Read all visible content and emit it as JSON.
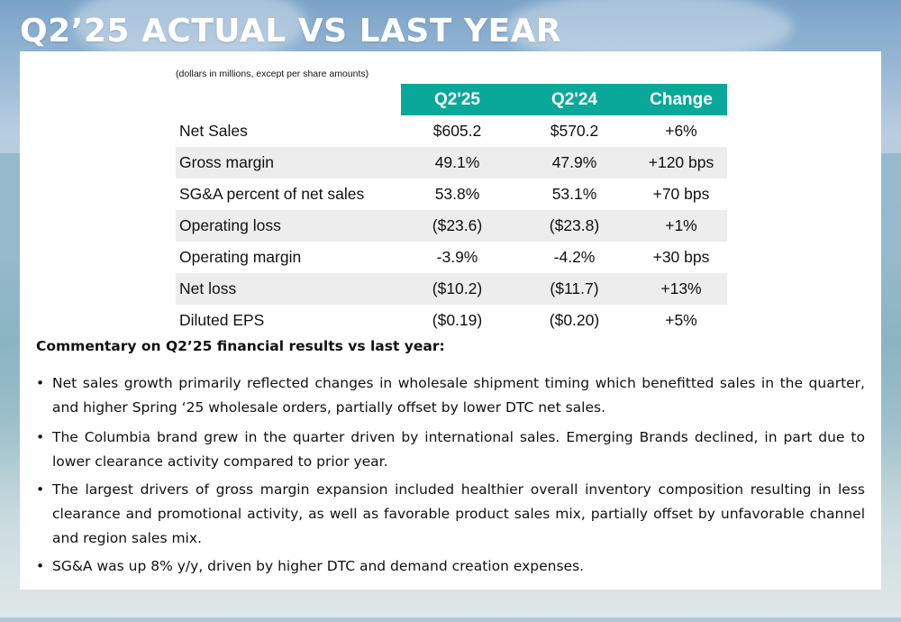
{
  "title": "Q2’25 ACTUAL VS LAST YEAR",
  "table": {
    "note": "(dollars in millions, except per share amounts)",
    "headers": [
      "",
      "Q2'25",
      "Q2'24",
      "Change"
    ],
    "rows": [
      {
        "label": "Net Sales",
        "q225": "$605.2",
        "q224": "$570.2",
        "change": "+6%"
      },
      {
        "label": "Gross margin",
        "q225": "49.1%",
        "q224": "47.9%",
        "change": "+120 bps"
      },
      {
        "label": "SG&A percent of net sales",
        "q225": "53.8%",
        "q224": "53.1%",
        "change": "+70 bps"
      },
      {
        "label": "Operating loss",
        "q225": "($23.6)",
        "q224": "($23.8)",
        "change": "+1%"
      },
      {
        "label": "Operating margin",
        "q225": "-3.9%",
        "q224": "-4.2%",
        "change": "+30 bps"
      },
      {
        "label": "Net loss",
        "q225": "($10.2)",
        "q224": "($11.7)",
        "change": "+13%"
      },
      {
        "label": "Diluted EPS",
        "q225": "($0.19)",
        "q224": "($0.20)",
        "change": "+5%"
      }
    ]
  },
  "commentary": {
    "heading": "Commentary on Q2’25 financial results vs last year:",
    "bullet_char": "•",
    "bullets": [
      "Net sales growth primarily reflected changes in wholesale shipment timing which benefitted sales in the quarter, and higher Spring ‘25 wholesale orders, partially offset by lower DTC net sales.",
      "The Columbia brand grew in the quarter driven by international sales. Emerging Brands declined, in part due to lower clearance activity compared to prior year.",
      "The largest drivers of gross margin expansion included healthier overall inventory composition resulting in less clearance and promotional activity, as well as favorable product sales mix, partially offset by unfavorable channel and region sales mix.",
      "SG&A was up 8% y/y, driven by higher DTC and demand creation expenses."
    ]
  },
  "colors": {
    "header_bg": "#0aa898",
    "alt_row_bg": "#ededed",
    "title_color": "#ffffff"
  }
}
